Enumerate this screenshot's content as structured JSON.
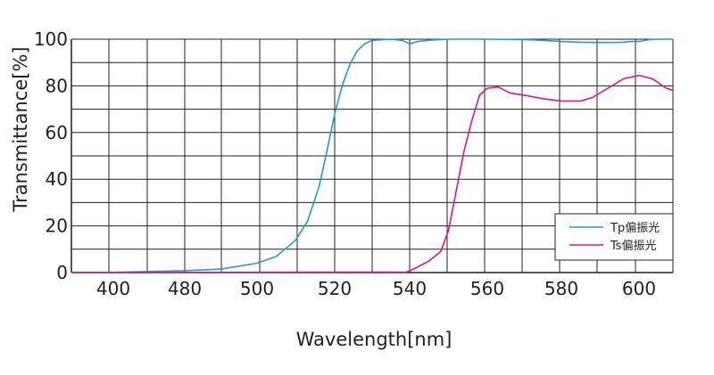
{
  "chart_data": {
    "type": "line",
    "xlabel": "Wavelength[nm]",
    "ylabel": "Transmittance[%]",
    "xlim": [
      388,
      610
    ],
    "ylim": [
      0,
      100
    ],
    "x_ticks": [
      "400",
      "480",
      "500",
      "520",
      "540",
      "560",
      "580",
      "600"
    ],
    "y_ticks": [
      "0",
      "20",
      "40",
      "60",
      "80",
      "100"
    ],
    "grid": true,
    "legend_position": "bottom-right",
    "series": [
      {
        "name": "Tp偏振光",
        "color": "#1e9ad6",
        "points": [
          [
            388,
            0
          ],
          [
            400,
            0.1
          ],
          [
            480,
            0.8
          ],
          [
            490,
            1.5
          ],
          [
            500,
            4
          ],
          [
            505,
            7
          ],
          [
            510,
            14
          ],
          [
            513,
            22
          ],
          [
            516,
            37
          ],
          [
            518,
            52
          ],
          [
            520,
            68
          ],
          [
            522,
            80
          ],
          [
            524,
            89
          ],
          [
            526,
            95
          ],
          [
            528,
            98
          ],
          [
            530,
            99.5
          ],
          [
            535,
            100
          ],
          [
            538,
            99.5
          ],
          [
            540,
            98
          ],
          [
            542,
            99
          ],
          [
            546,
            99.7
          ],
          [
            550,
            100
          ],
          [
            560,
            100
          ],
          [
            570,
            99.8
          ],
          [
            575,
            99.5
          ],
          [
            580,
            99
          ],
          [
            585,
            98.7
          ],
          [
            590,
            98.6
          ],
          [
            595,
            98.6
          ],
          [
            598,
            99
          ],
          [
            600,
            99
          ],
          [
            603,
            99.8
          ],
          [
            606,
            100
          ],
          [
            610,
            100
          ]
        ]
      },
      {
        "name": "Ts偏振光",
        "color": "#e0127f",
        "points": [
          [
            388,
            0
          ],
          [
            400,
            0
          ],
          [
            520,
            0.2
          ],
          [
            535,
            0.2
          ],
          [
            539,
            0.1
          ],
          [
            541,
            1.5
          ],
          [
            545,
            5
          ],
          [
            548,
            9
          ],
          [
            550,
            18
          ],
          [
            552,
            35
          ],
          [
            554,
            52
          ],
          [
            556,
            65
          ],
          [
            558,
            76
          ],
          [
            560,
            79
          ],
          [
            563,
            79.5
          ],
          [
            566,
            77
          ],
          [
            570,
            76
          ],
          [
            575,
            74.5
          ],
          [
            580,
            73.5
          ],
          [
            585,
            73.5
          ],
          [
            588,
            75
          ],
          [
            592,
            79
          ],
          [
            596,
            83
          ],
          [
            600,
            84.5
          ],
          [
            604,
            83
          ],
          [
            608,
            79
          ],
          [
            610,
            78
          ]
        ]
      }
    ]
  }
}
